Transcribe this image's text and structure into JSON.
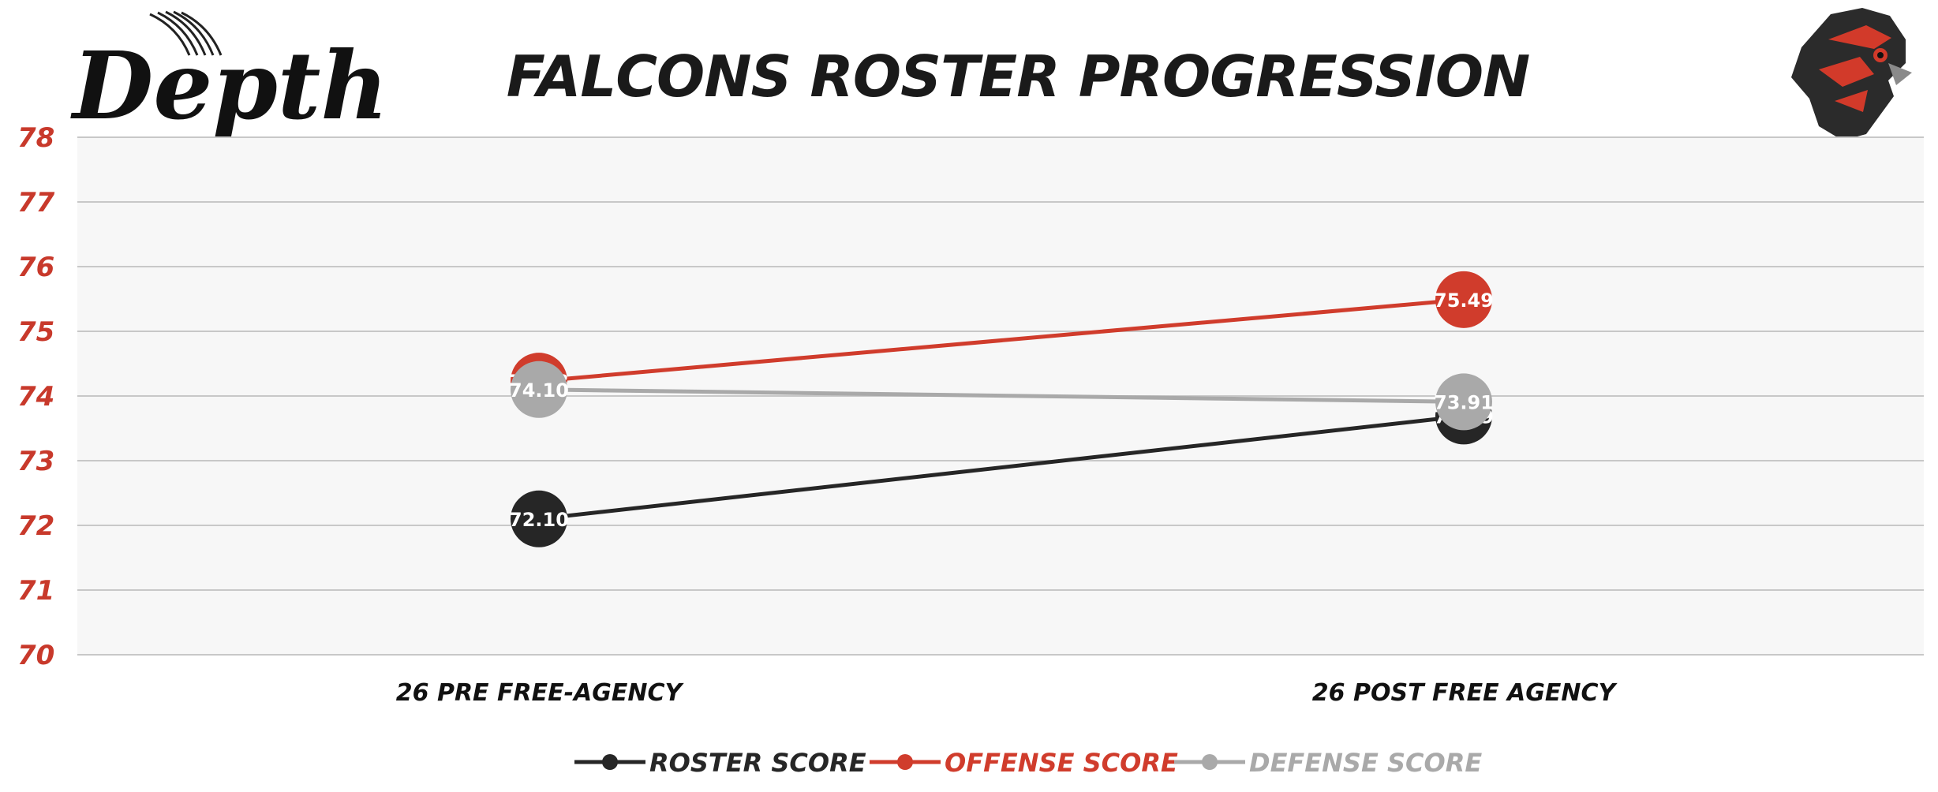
{
  "brand": {
    "logo_text": "Depth"
  },
  "colors": {
    "roster": "#262626",
    "offense": "#d03c2c",
    "defense": "#a9a9a9",
    "ytick": "#c8392b",
    "plot_bg": "#f7f7f7",
    "grid": "#c8c8c8"
  },
  "chart_data": {
    "type": "line",
    "title": "FALCONS ROSTER PROGRESSION",
    "categories": [
      "26 PRE FREE-AGENCY",
      "26 POST FREE AGENCY"
    ],
    "series": [
      {
        "name": "ROSTER SCORE",
        "values": [
          72.1,
          73.69
        ],
        "color": "#262626",
        "labels": [
          "72.10",
          "73.69"
        ]
      },
      {
        "name": "OFFENSE SCORE",
        "values": [
          74.23,
          75.49
        ],
        "color": "#d03c2c",
        "labels": [
          "74.23",
          "75.49"
        ]
      },
      {
        "name": "DEFENSE SCORE",
        "values": [
          74.1,
          73.91
        ],
        "color": "#a9a9a9",
        "labels": [
          "74.10",
          "73.91"
        ]
      }
    ],
    "ylim": [
      70,
      78
    ],
    "yticks": [
      "70",
      "71",
      "72",
      "73",
      "74",
      "75",
      "76",
      "77",
      "78"
    ],
    "grid": true,
    "legend_position": "bottom-center"
  }
}
